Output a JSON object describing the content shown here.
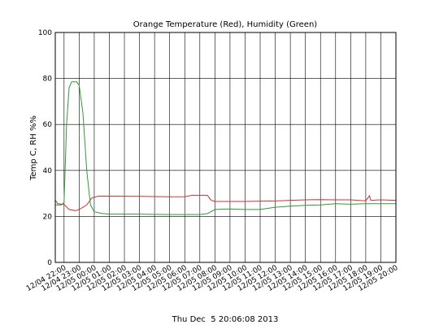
{
  "chart_data": {
    "type": "line",
    "title": "Orange Temperature (Red), Humidity (Green)",
    "ylabel": "Temp C, RH %%",
    "xlabel": "Thu Dec  5 20:06:08 2013",
    "ylim": [
      0,
      100
    ],
    "yticks": [
      0,
      20,
      40,
      60,
      80,
      100
    ],
    "xlim": [
      "12/04 21:25",
      "12/05 20:00"
    ],
    "xticks": [
      "12/04 22:00",
      "12/04 23:00",
      "12/05 00:00",
      "12/05 01:00",
      "12/05 02:00",
      "12/05 03:00",
      "12/05 04:00",
      "12/05 05:00",
      "12/05 06:00",
      "12/05 07:00",
      "12/05 08:00",
      "12/05 09:00",
      "12/05 10:00",
      "12/05 11:00",
      "12/05 12:00",
      "12/05 13:00",
      "12/05 14:00",
      "12/05 15:00",
      "12/05 16:00",
      "12/05 17:00",
      "12/05 18:00",
      "12/05 19:00",
      "12/05 20:00"
    ],
    "grid": true,
    "series": [
      {
        "color": "#cc3333",
        "x": [
          "12/04 21:25",
          "12/04 21:35",
          "12/04 22:00",
          "12/04 22:20",
          "12/04 22:45",
          "12/04 23:00",
          "12/04 23:30",
          "12/04 23:50",
          "12/05 00:15",
          "12/05 01:00",
          "12/05 03:00",
          "12/05 05:00",
          "12/05 06:00",
          "12/05 06:30",
          "12/05 07:30",
          "12/05 07:45",
          "12/05 08:00",
          "12/05 10:00",
          "12/05 12:00",
          "12/05 13:00",
          "12/05 14:00",
          "12/05 15:00",
          "12/05 16:00",
          "12/05 17:00",
          "12/05 18:00",
          "12/05 18:15",
          "12/05 18:20",
          "12/05 19:00",
          "12/05 20:00"
        ],
        "values": [
          27,
          25.5,
          25.2,
          23,
          22.5,
          23,
          25,
          28,
          28.8,
          28.8,
          28.7,
          28.5,
          28.6,
          29.2,
          29.2,
          27,
          26.5,
          26.5,
          26.7,
          27,
          27.2,
          27.3,
          27.2,
          27.2,
          26.8,
          29,
          27,
          27.2,
          27
        ]
      },
      {
        "color": "#339933",
        "x": [
          "12/04 21:25",
          "12/04 21:50",
          "12/04 22:00",
          "12/04 22:10",
          "12/04 22:20",
          "12/04 22:30",
          "12/04 22:50",
          "12/04 23:00",
          "12/04 23:15",
          "12/04 23:30",
          "12/04 23:45",
          "12/05 00:00",
          "12/05 00:30",
          "12/05 01:00",
          "12/05 03:00",
          "12/05 05:00",
          "12/05 06:00",
          "12/05 07:00",
          "12/05 07:30",
          "12/05 08:00",
          "12/05 09:00",
          "12/05 10:00",
          "12/05 11:00",
          "12/05 12:00",
          "12/05 13:00",
          "12/05 14:00",
          "12/05 15:00",
          "12/05 16:00",
          "12/05 17:00",
          "12/05 18:00",
          "12/05 19:00",
          "12/05 20:00"
        ],
        "values": [
          25,
          25,
          26,
          60,
          76,
          78.5,
          78.5,
          77,
          65,
          40,
          25,
          22,
          21.3,
          21,
          21,
          20.8,
          20.8,
          20.8,
          21.2,
          23,
          23.2,
          23,
          23,
          24,
          24.5,
          24.8,
          25,
          25.5,
          25.3,
          25.5,
          25.5,
          25.5
        ]
      }
    ]
  }
}
